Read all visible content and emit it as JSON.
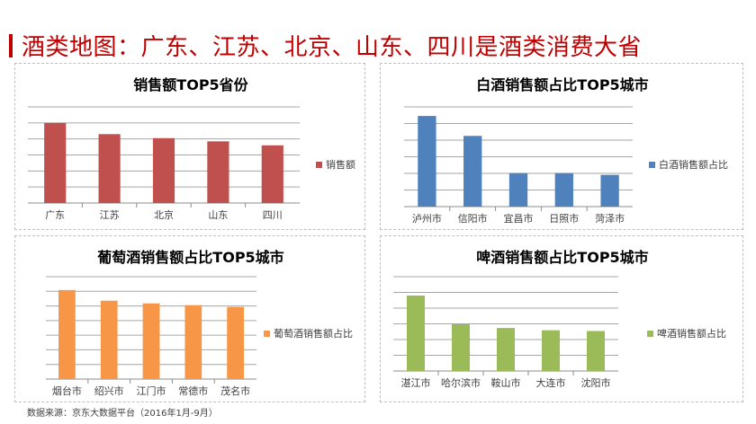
{
  "page": {
    "title": "酒类地图：广东、江苏、北京、山东、四川是酒类消费大省",
    "source": "数据来源：京东大数据平台（2016年1月-9月）",
    "accent": "#c00000"
  },
  "chart_data": [
    {
      "type": "bar",
      "title": "销售额TOP5省份",
      "categories": [
        "广东",
        "江苏",
        "北京",
        "山东",
        "四川"
      ],
      "series": [
        {
          "name": "销售额",
          "values": [
            100,
            86,
            81,
            77,
            72
          ]
        }
      ],
      "ylim": [
        0,
        120
      ],
      "y_ticks_labeled": false,
      "grid": true,
      "legend": "right",
      "color": "#c0504d"
    },
    {
      "type": "bar",
      "title": "白酒销售额占比TOP5城市",
      "categories": [
        "泸州市",
        "信阳市",
        "宜昌市",
        "日照市",
        "菏泽市"
      ],
      "series": [
        {
          "name": "白酒销售额占比",
          "values": [
            100,
            78,
            37,
            37,
            35
          ]
        }
      ],
      "ylim": [
        0,
        110
      ],
      "y_ticks_labeled": false,
      "grid": true,
      "legend": "right",
      "color": "#4f81bd"
    },
    {
      "type": "bar",
      "title": "葡萄酒销售额占比TOP5城市",
      "categories": [
        "烟台市",
        "绍兴市",
        "江门市",
        "常德市",
        "茂名市"
      ],
      "series": [
        {
          "name": "葡萄酒销售额占比",
          "values": [
            100,
            88,
            85,
            83,
            81
          ]
        }
      ],
      "ylim": [
        0,
        115
      ],
      "y_ticks_labeled": false,
      "grid": true,
      "legend": "right",
      "color": "#f79646"
    },
    {
      "type": "bar",
      "title": "啤酒销售额占比TOP5城市",
      "categories": [
        "湛江市",
        "哈尔滨市",
        "鞍山市",
        "大连市",
        "沈阳市"
      ],
      "series": [
        {
          "name": "啤酒销售额占比",
          "values": [
            100,
            62,
            57,
            54,
            53
          ]
        }
      ],
      "ylim": [
        0,
        125
      ],
      "y_ticks_labeled": false,
      "grid": true,
      "legend": "right",
      "color": "#9bbb59"
    }
  ]
}
